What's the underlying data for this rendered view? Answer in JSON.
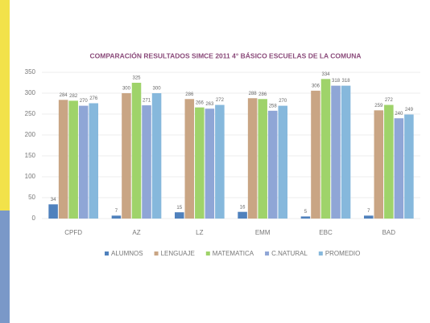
{
  "chart_data": {
    "type": "bar",
    "title": "COMPARACIÓN RESULTADOS SIMCE 2011 4° BÁSICO ESCUELAS DE LA COMUNA",
    "categories": [
      "CPFD",
      "AZ",
      "LZ",
      "EMM",
      "EBC",
      "BAD"
    ],
    "series": [
      {
        "name": "ALUMNOS",
        "color": "#4f81bd",
        "values": [
          34,
          7,
          15,
          16,
          5,
          7
        ]
      },
      {
        "name": "LENGUAJE",
        "color": "#c9a584",
        "values": [
          284,
          300,
          286,
          288,
          306,
          259
        ]
      },
      {
        "name": "MATEMATICA",
        "color": "#9fd36a",
        "values": [
          282,
          325,
          266,
          286,
          334,
          272
        ]
      },
      {
        "name": "C.NATURAL",
        "color": "#8fa6d6",
        "values": [
          270,
          271,
          263,
          258,
          318,
          240
        ]
      },
      {
        "name": "PROMEDIO",
        "color": "#86b8dc",
        "values": [
          276,
          300,
          272,
          270,
          318,
          249
        ]
      }
    ],
    "ylim": [
      0,
      350
    ],
    "yticks": [
      0,
      50,
      100,
      150,
      200,
      250,
      300,
      350
    ],
    "grid": true
  }
}
